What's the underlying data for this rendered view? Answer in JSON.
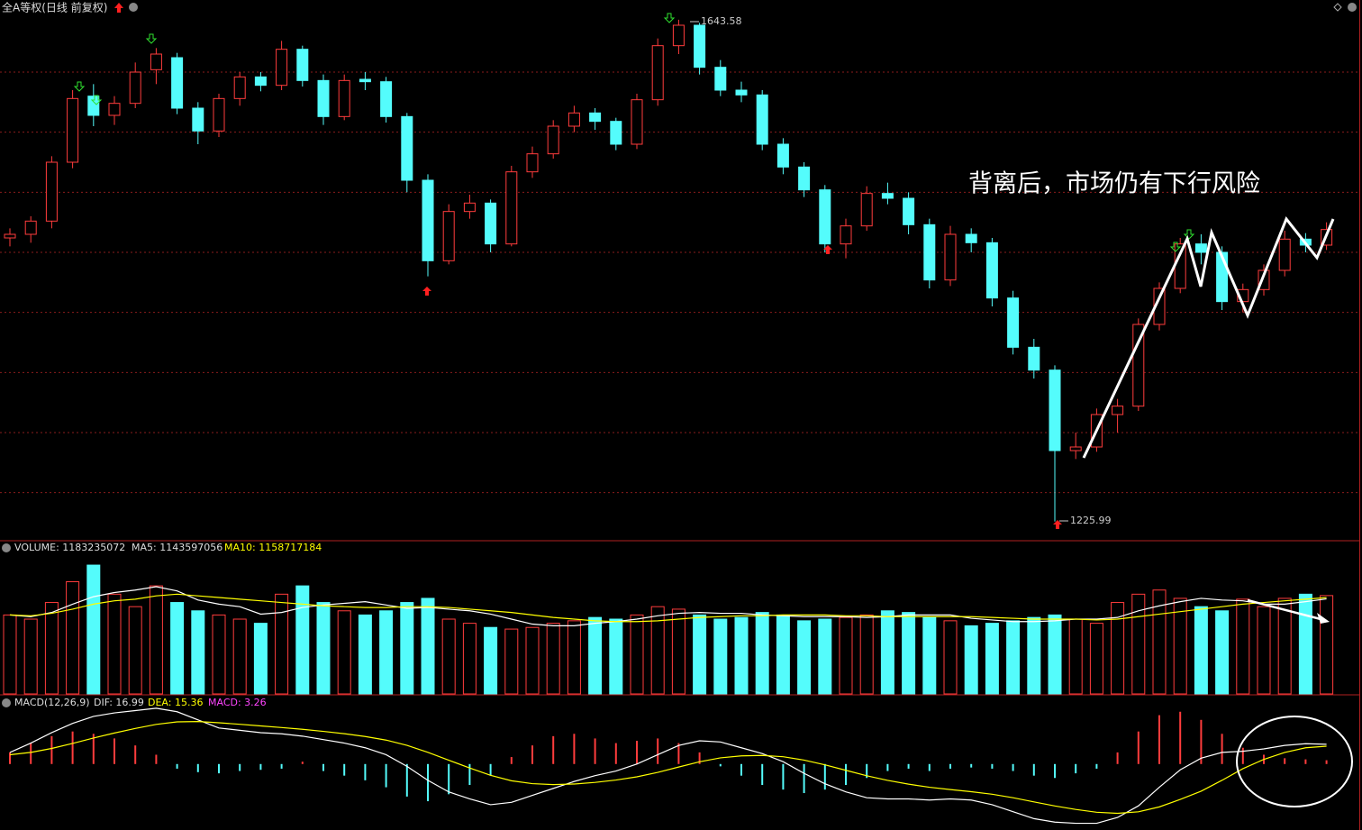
{
  "chart_data": {
    "type": "candlestick",
    "title": "全A等权(日线 前复权)",
    "up_color": "#ff3c3c",
    "down_color": "#54fcfc",
    "ylim": [
      1210,
      1660
    ],
    "yticks": [
      1250,
      1300,
      1350,
      1400,
      1450,
      1500,
      1550,
      1600
    ],
    "grid": true,
    "candles": [
      [
        1462,
        1470,
        1455,
        1465
      ],
      [
        1465,
        1480,
        1458,
        1476
      ],
      [
        1476,
        1530,
        1470,
        1525
      ],
      [
        1525,
        1585,
        1520,
        1578
      ],
      [
        1580,
        1590,
        1555,
        1564
      ],
      [
        1564,
        1580,
        1556,
        1574
      ],
      [
        1574,
        1608,
        1570,
        1600
      ],
      [
        1602,
        1620,
        1590,
        1615
      ],
      [
        1612,
        1616,
        1565,
        1570
      ],
      [
        1570,
        1575,
        1540,
        1551
      ],
      [
        1551,
        1582,
        1546,
        1578
      ],
      [
        1578,
        1600,
        1572,
        1596
      ],
      [
        1596,
        1600,
        1584,
        1589
      ],
      [
        1589,
        1626,
        1585,
        1619
      ],
      [
        1619,
        1622,
        1588,
        1593
      ],
      [
        1593,
        1598,
        1556,
        1563
      ],
      [
        1563,
        1598,
        1560,
        1593
      ],
      [
        1594,
        1600,
        1585,
        1592
      ],
      [
        1592,
        1596,
        1558,
        1563
      ],
      [
        1563,
        1566,
        1500,
        1510
      ],
      [
        1510,
        1515,
        1430,
        1443
      ],
      [
        1443,
        1490,
        1440,
        1484
      ],
      [
        1484,
        1498,
        1478,
        1491
      ],
      [
        1491,
        1494,
        1450,
        1457
      ],
      [
        1457,
        1522,
        1455,
        1517
      ],
      [
        1517,
        1538,
        1512,
        1532
      ],
      [
        1532,
        1560,
        1528,
        1555
      ],
      [
        1555,
        1572,
        1550,
        1566
      ],
      [
        1566,
        1570,
        1552,
        1559
      ],
      [
        1559,
        1562,
        1535,
        1540
      ],
      [
        1540,
        1582,
        1536,
        1577
      ],
      [
        1577,
        1628,
        1572,
        1622
      ],
      [
        1622,
        1643.58,
        1615,
        1639
      ],
      [
        1639,
        1641,
        1598,
        1604
      ],
      [
        1604,
        1610,
        1580,
        1585
      ],
      [
        1585,
        1592,
        1575,
        1581
      ],
      [
        1581,
        1585,
        1535,
        1540
      ],
      [
        1540,
        1545,
        1515,
        1521
      ],
      [
        1521,
        1525,
        1496,
        1502
      ],
      [
        1502,
        1506,
        1450,
        1457
      ],
      [
        1457,
        1478,
        1445,
        1472
      ],
      [
        1472,
        1505,
        1468,
        1499
      ],
      [
        1499,
        1508,
        1490,
        1495
      ],
      [
        1495,
        1500,
        1465,
        1473
      ],
      [
        1473,
        1478,
        1420,
        1427
      ],
      [
        1427,
        1472,
        1422,
        1465
      ],
      [
        1465,
        1470,
        1450,
        1458
      ],
      [
        1458,
        1462,
        1405,
        1412
      ],
      [
        1412,
        1418,
        1365,
        1371
      ],
      [
        1371,
        1378,
        1345,
        1352
      ],
      [
        1352,
        1356,
        1225.99,
        1285
      ],
      [
        1285,
        1300,
        1278,
        1288
      ],
      [
        1288,
        1320,
        1284,
        1315
      ],
      [
        1315,
        1328,
        1300,
        1322
      ],
      [
        1322,
        1395,
        1318,
        1390
      ],
      [
        1390,
        1425,
        1385,
        1420
      ],
      [
        1420,
        1462,
        1416,
        1457
      ],
      [
        1457,
        1465,
        1440,
        1450
      ],
      [
        1450,
        1455,
        1402,
        1409
      ],
      [
        1409,
        1424,
        1400,
        1419
      ],
      [
        1419,
        1440,
        1414,
        1435
      ],
      [
        1435,
        1468,
        1430,
        1461
      ],
      [
        1461,
        1466,
        1450,
        1456
      ],
      [
        1456,
        1475,
        1452,
        1469
      ]
    ],
    "high_label": "1643.58",
    "low_label": "1225.99",
    "annotation": "背离后，市场仍有下行风险",
    "volume": {
      "legend": [
        "VOLUME: 1183235072",
        "MA5: 1143597056",
        "MA10: 1158717184"
      ],
      "ylim": [
        0,
        1800000000
      ],
      "values": [
        950000000.0,
        900000000.0,
        1100000000.0,
        1350000000.0,
        1550000000.0,
        1200000000.0,
        1050000000.0,
        1300000000.0,
        1100000000.0,
        1000000000.0,
        950000000.0,
        900000000.0,
        850000000.0,
        1200000000.0,
        1300000000.0,
        1100000000.0,
        1000000000.0,
        950000000.0,
        1000000000.0,
        1100000000.0,
        1150000000.0,
        900000000.0,
        850000000.0,
        800000000.0,
        780000000.0,
        800000000.0,
        850000000.0,
        880000000.0,
        920000000.0,
        900000000.0,
        950000000.0,
        1050000000.0,
        1020000000.0,
        950000000.0,
        900000000.0,
        920000000.0,
        980000000.0,
        950000000.0,
        880000000.0,
        900000000.0,
        920000000.0,
        950000000.0,
        1000000000.0,
        980000000.0,
        920000000.0,
        880000000.0,
        820000000.0,
        850000000.0,
        880000000.0,
        920000000.0,
        950000000.0,
        900000000.0,
        850000000.0,
        1100000000.0,
        1200000000.0,
        1250000000.0,
        1150000000.0,
        1050000000.0,
        1000000000.0,
        1140000000.0,
        1050000000.0,
        1150000000.0,
        1200000000.0,
        1183235072
      ],
      "ma5": [
        950000000.0,
        930000000.0,
        980000000.0,
        1080000000.0,
        1170000000.0,
        1220000000.0,
        1250000000.0,
        1290000000.0,
        1240000000.0,
        1130000000.0,
        1080000000.0,
        1050000000.0,
        960000000.0,
        980000000.0,
        1040000000.0,
        1070000000.0,
        1090000000.0,
        1110000000.0,
        1070000000.0,
        1030000000.0,
        1040000000.0,
        1020000000.0,
        1000000000.0,
        960000000.0,
        900000000.0,
        840000000.0,
        820000000.0,
        820000000.0,
        850000000.0,
        870000000.0,
        900000000.0,
        940000000.0,
        970000000.0,
        980000000.0,
        970000000.0,
        970000000.0,
        950000000.0,
        940000000.0,
        930000000.0,
        930000000.0,
        930000000.0,
        920000000.0,
        930000000.0,
        950000000.0,
        950000000.0,
        950000000.0,
        910000000.0,
        890000000.0,
        870000000.0,
        870000000.0,
        880000000.0,
        900000000.0,
        900000000.0,
        920000000.0,
        1000000000.0,
        1060000000.0,
        1110000000.0,
        1150000000.0,
        1130000000.0,
        1120000000.0,
        1080000000.0,
        1080000000.0,
        1110000000.0,
        1143597056
      ],
      "ma10": [
        950000000.0,
        940000000.0,
        970000000.0,
        1020000000.0,
        1080000000.0,
        1120000000.0,
        1140000000.0,
        1180000000.0,
        1200000000.0,
        1180000000.0,
        1160000000.0,
        1140000000.0,
        1120000000.0,
        1100000000.0,
        1080000000.0,
        1060000000.0,
        1050000000.0,
        1040000000.0,
        1040000000.0,
        1050000000.0,
        1050000000.0,
        1040000000.0,
        1020000000.0,
        1000000000.0,
        980000000.0,
        950000000.0,
        920000000.0,
        900000000.0,
        880000000.0,
        870000000.0,
        870000000.0,
        880000000.0,
        900000000.0,
        920000000.0,
        930000000.0,
        940000000.0,
        940000000.0,
        950000000.0,
        950000000.0,
        950000000.0,
        940000000.0,
        940000000.0,
        930000000.0,
        930000000.0,
        930000000.0,
        930000000.0,
        930000000.0,
        920000000.0,
        910000000.0,
        900000000.0,
        900000000.0,
        900000000.0,
        890000000.0,
        900000000.0,
        930000000.0,
        960000000.0,
        990000000.0,
        1020000000.0,
        1050000000.0,
        1080000000.0,
        1100000000.0,
        1120000000.0,
        1140000000.0,
        1158717184
      ],
      "ma5_color": "#ffffff",
      "ma10_color": "#ffff00"
    },
    "macd": {
      "legend": [
        "MACD(12,26,9)",
        "DIF: 16.99",
        "DEA: 15.36",
        "MACD: 3.26"
      ],
      "ylim": [
        -56,
        58
      ],
      "dif": [
        10,
        18,
        27,
        35,
        41,
        44,
        46,
        48,
        45,
        38,
        31,
        29,
        27,
        26,
        24,
        21,
        18,
        14,
        8,
        -2,
        -14,
        -24,
        -30,
        -35,
        -33,
        -27,
        -21,
        -15,
        -10,
        -6,
        0,
        8,
        16,
        20,
        19,
        14,
        9,
        2,
        -8,
        -17,
        -24,
        -29,
        -30,
        -30,
        -31,
        -30,
        -31,
        -35,
        -41,
        -47,
        -50,
        -51,
        -51,
        -46,
        -36,
        -20,
        -5,
        5,
        10,
        11,
        13,
        16,
        17.5,
        16.99
      ],
      "dea": [
        8,
        10,
        13.4,
        17.7,
        22.4,
        26.7,
        30.6,
        34.1,
        36.3,
        36.6,
        35.5,
        34.2,
        32.8,
        31.4,
        29.9,
        28.1,
        26.1,
        23.7,
        20.6,
        16.1,
        10.1,
        3.3,
        -3.4,
        -9.7,
        -14.4,
        -16.9,
        -17.7,
        -17.2,
        -15.8,
        -13.8,
        -11,
        -7.2,
        -2.6,
        1.9,
        5.3,
        7,
        7.4,
        6.3,
        3.4,
        -0.7,
        -5.4,
        -10.1,
        -14.1,
        -17.3,
        -20,
        -22,
        -23.8,
        -26,
        -29,
        -32.6,
        -36.1,
        -39.1,
        -41.5,
        -42.4,
        -41.1,
        -36.9,
        -30.5,
        -23.4,
        -14,
        -4,
        4,
        10,
        14,
        15.36
      ],
      "hist": [
        10,
        18,
        24,
        28,
        26,
        22,
        16,
        8,
        -4,
        -7,
        -8,
        -6,
        -5,
        -4,
        2,
        -6,
        -10,
        -14,
        -20,
        -28,
        -32,
        -26,
        -18,
        -10,
        6,
        16,
        24,
        26,
        22,
        18,
        20,
        22,
        18,
        10,
        -2,
        -10,
        -18,
        -22,
        -25,
        -22,
        -18,
        -12,
        -6,
        -4,
        -6,
        -4,
        -3,
        -4,
        -6,
        -10,
        -12,
        -8,
        -4,
        10,
        28,
        42,
        45,
        38,
        26,
        14,
        8,
        5,
        4,
        3.26
      ],
      "dif_color": "#ffffff",
      "dea_color": "#ffff00"
    }
  }
}
